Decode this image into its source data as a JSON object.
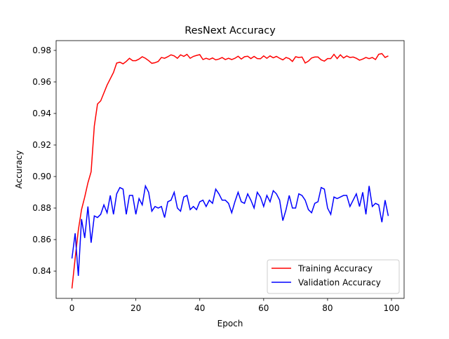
{
  "chart_data": {
    "type": "line",
    "title": "ResNext Accuracy",
    "x_label": "Epoch",
    "y_label": "Accuracy",
    "x": [
      0,
      1,
      2,
      3,
      4,
      5,
      6,
      7,
      8,
      9,
      10,
      11,
      12,
      13,
      14,
      15,
      16,
      17,
      18,
      19,
      20,
      21,
      22,
      23,
      24,
      25,
      26,
      27,
      28,
      29,
      30,
      31,
      32,
      33,
      34,
      35,
      36,
      37,
      38,
      39,
      40,
      41,
      42,
      43,
      44,
      45,
      46,
      47,
      48,
      49,
      50,
      51,
      52,
      53,
      54,
      55,
      56,
      57,
      58,
      59,
      60,
      61,
      62,
      63,
      64,
      65,
      66,
      67,
      68,
      69,
      70,
      71,
      72,
      73,
      74,
      75,
      76,
      77,
      78,
      79,
      80,
      81,
      82,
      83,
      84,
      85,
      86,
      87,
      88,
      89,
      90,
      91,
      92,
      93,
      94,
      95,
      96,
      97,
      98,
      99
    ],
    "series": [
      {
        "name": "Training Accuracy",
        "color": "#ff0000",
        "values": [
          0.829,
          0.848,
          0.866,
          0.879,
          0.887,
          0.896,
          0.903,
          0.932,
          0.946,
          0.948,
          0.953,
          0.958,
          0.962,
          0.966,
          0.972,
          0.9725,
          0.9715,
          0.973,
          0.975,
          0.9735,
          0.9735,
          0.9745,
          0.976,
          0.975,
          0.9735,
          0.9718,
          0.9722,
          0.973,
          0.9755,
          0.975,
          0.976,
          0.9772,
          0.9765,
          0.975,
          0.9772,
          0.9762,
          0.9775,
          0.975,
          0.9762,
          0.9768,
          0.9773,
          0.9742,
          0.975,
          0.9743,
          0.9752,
          0.974,
          0.9745,
          0.9755,
          0.9742,
          0.975,
          0.9742,
          0.975,
          0.9763,
          0.9745,
          0.976,
          0.9763,
          0.9748,
          0.9762,
          0.9748,
          0.9747,
          0.9765,
          0.975,
          0.9765,
          0.9753,
          0.9762,
          0.975,
          0.974,
          0.9755,
          0.9748,
          0.973,
          0.976,
          0.9755,
          0.9758,
          0.972,
          0.9732,
          0.9752,
          0.9758,
          0.9758,
          0.974,
          0.9732,
          0.9748,
          0.9748,
          0.9775,
          0.9748,
          0.9772,
          0.9752,
          0.9765,
          0.9755,
          0.9758,
          0.975,
          0.9738,
          0.9745,
          0.9755,
          0.9748,
          0.9755,
          0.9742,
          0.9775,
          0.978,
          0.9755,
          0.9765
        ]
      },
      {
        "name": "Validation Accuracy",
        "color": "#0000ff",
        "values": [
          0.848,
          0.864,
          0.837,
          0.873,
          0.861,
          0.881,
          0.858,
          0.875,
          0.874,
          0.876,
          0.882,
          0.877,
          0.888,
          0.876,
          0.889,
          0.893,
          0.892,
          0.876,
          0.888,
          0.888,
          0.876,
          0.886,
          0.882,
          0.894,
          0.89,
          0.878,
          0.881,
          0.88,
          0.881,
          0.874,
          0.884,
          0.885,
          0.89,
          0.88,
          0.878,
          0.887,
          0.888,
          0.879,
          0.881,
          0.879,
          0.884,
          0.885,
          0.881,
          0.885,
          0.883,
          0.892,
          0.889,
          0.885,
          0.885,
          0.883,
          0.877,
          0.884,
          0.89,
          0.884,
          0.883,
          0.889,
          0.885,
          0.88,
          0.89,
          0.887,
          0.881,
          0.888,
          0.884,
          0.891,
          0.889,
          0.885,
          0.872,
          0.879,
          0.888,
          0.88,
          0.88,
          0.889,
          0.888,
          0.885,
          0.879,
          0.877,
          0.883,
          0.884,
          0.893,
          0.892,
          0.88,
          0.876,
          0.887,
          0.886,
          0.887,
          0.888,
          0.888,
          0.881,
          0.885,
          0.889,
          0.881,
          0.89,
          0.876,
          0.894,
          0.881,
          0.883,
          0.882,
          0.871,
          0.885,
          0.875
        ]
      }
    ],
    "xlim": [
      -4.95,
      103.95
    ],
    "ylim": [
      0.8227,
      0.9862
    ],
    "xticks": [
      0,
      20,
      40,
      60,
      80,
      100
    ],
    "yticks": [
      0.84,
      0.86,
      0.88,
      {
        "value": 0.9,
        "label": "0.90"
      },
      0.92,
      0.94,
      0.96,
      0.98
    ],
    "legend": "lower right"
  }
}
